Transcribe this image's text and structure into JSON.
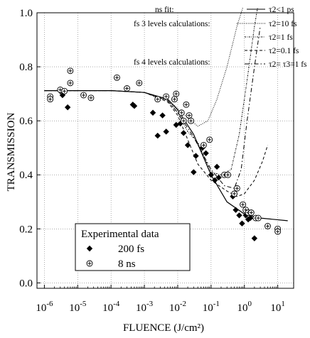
{
  "chart_data": {
    "type": "scatter",
    "title": "",
    "xlabel": "FLUENCE (J/cm²)",
    "ylabel": "TRANSMISSION",
    "xscale": "log",
    "xlim": [
      6e-07,
      30
    ],
    "ylim": [
      -0.02,
      1.0
    ],
    "x_ticks": [
      {
        "value": 1e-06,
        "base": "10",
        "exp": "-6"
      },
      {
        "value": 1e-05,
        "base": "10",
        "exp": "-5"
      },
      {
        "value": 0.0001,
        "base": "10",
        "exp": "-4"
      },
      {
        "value": 0.001,
        "base": "10",
        "exp": "-3"
      },
      {
        "value": 0.01,
        "base": "10",
        "exp": "-2"
      },
      {
        "value": 0.1,
        "base": "10",
        "exp": "-1"
      },
      {
        "value": 1,
        "base": "10",
        "exp": "0"
      },
      {
        "value": 10,
        "base": "10",
        "exp": "1"
      }
    ],
    "y_ticks": [
      {
        "value": 0.0,
        "label": "0.0"
      },
      {
        "value": 0.2,
        "label": "0.2"
      },
      {
        "value": 0.4,
        "label": "0.4"
      },
      {
        "value": 0.6,
        "label": "0.6"
      },
      {
        "value": 0.8,
        "label": "0.8"
      },
      {
        "value": 1.0,
        "label": "1.0"
      }
    ],
    "grid": true,
    "legend_title": "Experimental data",
    "scatter_series": [
      {
        "name": "200 fs",
        "marker": "diamond",
        "points": [
          [
            3e-06,
            0.71
          ],
          [
            3.5e-06,
            0.695
          ],
          [
            5e-06,
            0.65
          ],
          [
            0.00045,
            0.66
          ],
          [
            0.0005,
            0.655
          ],
          [
            0.0018,
            0.63
          ],
          [
            0.0025,
            0.545
          ],
          [
            0.0035,
            0.62
          ],
          [
            0.0045,
            0.56
          ],
          [
            0.009,
            0.585
          ],
          [
            0.012,
            0.59
          ],
          [
            0.015,
            0.555
          ],
          [
            0.02,
            0.51
          ],
          [
            0.03,
            0.41
          ],
          [
            0.035,
            0.47
          ],
          [
            0.055,
            0.5
          ],
          [
            0.07,
            0.48
          ],
          [
            0.1,
            0.4
          ],
          [
            0.13,
            0.38
          ],
          [
            0.15,
            0.43
          ],
          [
            0.17,
            0.39
          ],
          [
            0.45,
            0.32
          ],
          [
            0.55,
            0.27
          ],
          [
            0.7,
            0.25
          ],
          [
            0.85,
            0.22
          ],
          [
            1.1,
            0.25
          ],
          [
            1.3,
            0.235
          ],
          [
            1.5,
            0.24
          ],
          [
            2,
            0.165
          ]
        ]
      },
      {
        "name": "8 ns",
        "marker": "circle-plus",
        "points": [
          [
            1.5e-06,
            0.69
          ],
          [
            1.5e-06,
            0.68
          ],
          [
            3e-06,
            0.715
          ],
          [
            4e-06,
            0.71
          ],
          [
            6e-06,
            0.785
          ],
          [
            6e-06,
            0.74
          ],
          [
            1.5e-05,
            0.695
          ],
          [
            2.5e-05,
            0.685
          ],
          [
            0.00015,
            0.76
          ],
          [
            0.0003,
            0.72
          ],
          [
            0.0007,
            0.74
          ],
          [
            0.0025,
            0.68
          ],
          [
            0.0045,
            0.69
          ],
          [
            0.008,
            0.68
          ],
          [
            0.009,
            0.7
          ],
          [
            0.013,
            0.63
          ],
          [
            0.015,
            0.6
          ],
          [
            0.018,
            0.66
          ],
          [
            0.022,
            0.62
          ],
          [
            0.025,
            0.6
          ],
          [
            0.06,
            0.51
          ],
          [
            0.09,
            0.53
          ],
          [
            0.25,
            0.4
          ],
          [
            0.32,
            0.4
          ],
          [
            0.5,
            0.33
          ],
          [
            0.6,
            0.35
          ],
          [
            0.9,
            0.29
          ],
          [
            1.1,
            0.27
          ],
          [
            1.3,
            0.26
          ],
          [
            1.6,
            0.26
          ],
          [
            2.2,
            0.24
          ],
          [
            2.6,
            0.24
          ],
          [
            5,
            0.21
          ],
          [
            10,
            0.2
          ],
          [
            10,
            0.19
          ]
        ]
      }
    ],
    "curves": [
      {
        "label": "τ2<1 ps",
        "style": "solid",
        "points": [
          [
            1e-06,
            0.712
          ],
          [
            0.0001,
            0.712
          ],
          [
            0.001,
            0.705
          ],
          [
            0.005,
            0.68
          ],
          [
            0.01,
            0.64
          ],
          [
            0.03,
            0.55
          ],
          [
            0.1,
            0.4
          ],
          [
            0.3,
            0.3
          ],
          [
            1,
            0.255
          ],
          [
            3,
            0.24
          ],
          [
            20,
            0.23
          ]
        ]
      },
      {
        "label": "τ2=10 fs",
        "style": "dotted",
        "points": [
          [
            1e-06,
            0.712
          ],
          [
            0.0001,
            0.712
          ],
          [
            0.001,
            0.705
          ],
          [
            0.005,
            0.68
          ],
          [
            0.01,
            0.645
          ],
          [
            0.02,
            0.61
          ],
          [
            0.04,
            0.58
          ],
          [
            0.08,
            0.6
          ],
          [
            0.15,
            0.68
          ],
          [
            0.3,
            0.8
          ],
          [
            0.6,
            0.95
          ],
          [
            0.9,
            1.02
          ]
        ]
      },
      {
        "label": "τ2=1 fs",
        "style": "dashdot-fine",
        "points": [
          [
            1e-06,
            0.712
          ],
          [
            0.0001,
            0.712
          ],
          [
            0.001,
            0.705
          ],
          [
            0.005,
            0.675
          ],
          [
            0.01,
            0.63
          ],
          [
            0.02,
            0.56
          ],
          [
            0.04,
            0.52
          ],
          [
            0.1,
            0.41
          ],
          [
            0.2,
            0.4
          ],
          [
            0.4,
            0.42
          ],
          [
            0.7,
            0.55
          ],
          [
            1.2,
            0.75
          ],
          [
            2,
            0.95
          ],
          [
            2.5,
            1.02
          ]
        ]
      },
      {
        "label": "τ2=0.1 fs",
        "style": "dashed",
        "points": [
          [
            1e-06,
            0.712
          ],
          [
            0.0001,
            0.712
          ],
          [
            0.001,
            0.705
          ],
          [
            0.005,
            0.67
          ],
          [
            0.01,
            0.62
          ],
          [
            0.02,
            0.53
          ],
          [
            0.04,
            0.44
          ],
          [
            0.1,
            0.38
          ],
          [
            0.3,
            0.34
          ],
          [
            0.6,
            0.32
          ],
          [
            1,
            0.33
          ],
          [
            2,
            0.38
          ],
          [
            3.5,
            0.45
          ],
          [
            5,
            0.51
          ]
        ]
      },
      {
        "label": "τ2= τ3=1 fs",
        "style": "dashdot",
        "points": [
          [
            1e-06,
            0.712
          ],
          [
            0.0001,
            0.712
          ],
          [
            0.001,
            0.705
          ],
          [
            0.005,
            0.675
          ],
          [
            0.01,
            0.63
          ],
          [
            0.03,
            0.54
          ],
          [
            0.1,
            0.42
          ],
          [
            0.25,
            0.36
          ],
          [
            0.5,
            0.35
          ],
          [
            0.8,
            0.42
          ],
          [
            1.2,
            0.6
          ],
          [
            2,
            0.8
          ],
          [
            3,
            0.95
          ]
        ]
      }
    ],
    "annotations": {
      "ns_fit": "ns fit:",
      "fs3": "fs 3 levels calculations:",
      "fs4": "fs 4 levels calculations:"
    }
  }
}
